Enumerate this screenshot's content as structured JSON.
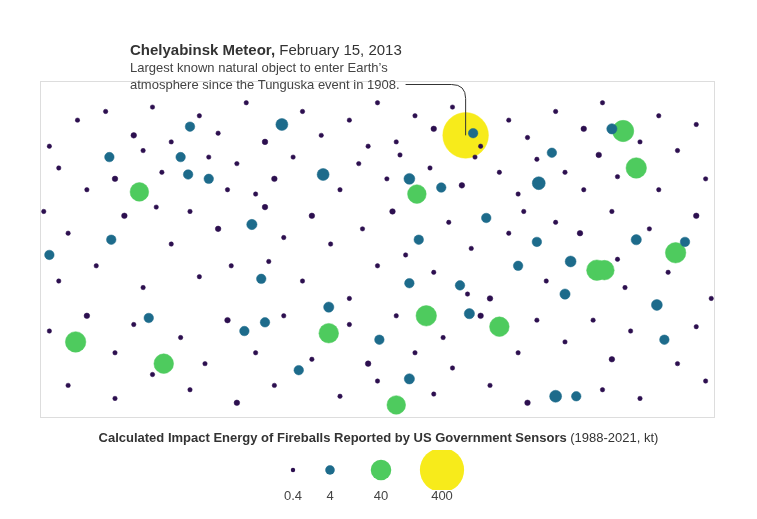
{
  "chart_data": {
    "type": "bubble",
    "title": "Calculated Impact Energy of Fireballs Reported by US Government Sensors",
    "subtitle": "(1988-2021, kt)",
    "annotation": {
      "title": "Chelyabinsk Meteor,",
      "date": "February 15, 2013",
      "text": [
        "Largest known natural object to enter Earth’s",
        "atmosphere since the Tunguska event in 1908."
      ]
    },
    "xlim": [
      -180,
      180
    ],
    "ylim": [
      -75,
      80
    ],
    "tick_labels": false,
    "grid": false,
    "size_legend": {
      "values": [
        0.4,
        4,
        40,
        400
      ],
      "colors": [
        "#2c0f4f",
        "#1d6b8b",
        "#4ecb5e",
        "#f7eb1b"
      ]
    },
    "x": [
      47,
      131,
      138,
      159,
      117,
      121,
      21,
      -127,
      -161,
      -114,
      -26,
      26,
      65,
      10,
      86,
      17,
      -29,
      -51,
      95,
      149,
      -67,
      -100,
      -101,
      -175,
      138,
      103,
      85,
      93,
      125,
      51,
      17,
      17,
      106,
      -26,
      -60,
      -62,
      44,
      49,
      34,
      100,
      -143,
      -90,
      -105,
      -142,
      -42,
      58,
      75,
      164,
      153,
      1,
      -122,
      -71,
      22,
      -160,
      -145,
      -130,
      -120,
      -110,
      -95,
      -85,
      -70,
      -60,
      -40,
      -30,
      -15,
      0,
      10,
      20,
      30,
      40,
      55,
      70,
      80,
      95,
      110,
      120,
      140,
      150,
      170,
      -175,
      -5,
      -170,
      -155,
      -140,
      -125,
      -115,
      -90,
      -80,
      -75,
      -55,
      -45,
      -20,
      -10,
      5,
      12,
      28,
      45,
      52,
      65,
      75,
      100,
      110,
      118,
      128,
      150,
      160,
      175,
      -65,
      85,
      -178,
      -165,
      -150,
      -135,
      -125,
      -110,
      -100,
      -95,
      -85,
      -78,
      -58,
      -50,
      -40,
      -35,
      -25,
      -15,
      -8,
      0,
      8,
      15,
      30,
      38,
      50,
      60,
      70,
      78,
      90,
      95,
      108,
      125,
      132,
      145,
      155,
      170,
      178,
      -170,
      -118,
      48,
      -60,
      128,
      -175,
      -155,
      -140,
      -130,
      -105,
      -92,
      -80,
      -65,
      -50,
      -35,
      -15,
      -5,
      10,
      20,
      35,
      40,
      55,
      75,
      85,
      100,
      115,
      125,
      135,
      160,
      170,
      -120,
      -165,
      -140,
      -100,
      -75,
      -55,
      -20,
      0,
      30,
      60,
      80,
      120,
      140,
      175
    ],
    "y": [
      55,
      57,
      40,
      1,
      -7,
      -7,
      28,
      29,
      -40,
      -50,
      -36,
      -28,
      -33,
      -69,
      33,
      35,
      37,
      60,
      -65,
      -23,
      14,
      59,
      37,
      0,
      7,
      -3,
      6,
      47,
      58,
      56,
      -13,
      -57,
      -65,
      -24,
      -31,
      -11,
      -14,
      -27,
      31,
      -18,
      45,
      35,
      45,
      7,
      -53,
      17,
      -5,
      6,
      -39,
      -39,
      -29,
      -35,
      7,
      62,
      66,
      55,
      68,
      52,
      64,
      56,
      70,
      52,
      66,
      55,
      62,
      70,
      52,
      64,
      58,
      68,
      50,
      62,
      54,
      66,
      58,
      70,
      52,
      64,
      60,
      50,
      50,
      40,
      30,
      35,
      48,
      38,
      45,
      30,
      42,
      35,
      45,
      30,
      42,
      35,
      46,
      40,
      32,
      45,
      38,
      28,
      38,
      30,
      46,
      36,
      30,
      48,
      35,
      28,
      44,
      20,
      10,
      -5,
      18,
      -15,
      5,
      20,
      -10,
      12,
      -5,
      -3,
      8,
      -12,
      18,
      5,
      -20,
      12,
      -5,
      20,
      0,
      -8,
      15,
      3,
      -20,
      10,
      20,
      -12,
      15,
      10,
      20,
      -15,
      12,
      -8,
      18,
      -20,
      -12,
      22,
      -18,
      22,
      -2,
      -35,
      -28,
      -45,
      -32,
      -38,
      -50,
      -30,
      -45,
      -28,
      -48,
      -32,
      -50,
      -28,
      -45,
      -38,
      -52,
      -28,
      -45,
      -30,
      -40,
      -30,
      -48,
      -35,
      -50,
      -33,
      -55,
      -60,
      -66,
      -62,
      -68,
      -60,
      -65,
      -58,
      -64,
      -60,
      -68,
      -62,
      -66,
      -58
    ],
    "energy": [
      440,
      45,
      40,
      40,
      40,
      35,
      30,
      30,
      40,
      35,
      35,
      40,
      35,
      30,
      10,
      6,
      8,
      8,
      8,
      6,
      5,
      4,
      4,
      4,
      5,
      6,
      4,
      4,
      5,
      4,
      4,
      5,
      4,
      5,
      4,
      4,
      4,
      5,
      4,
      5,
      4,
      4,
      4,
      4,
      4,
      4,
      4,
      4,
      4,
      4,
      4,
      4,
      4,
      0.4,
      0.4,
      0.8,
      0.4,
      0.4,
      0.4,
      0.4,
      0.4,
      0.8,
      0.4,
      0.4,
      0.4,
      0.4,
      0.4,
      0.4,
      0.8,
      0.4,
      0.4,
      0.4,
      0.4,
      0.4,
      0.8,
      0.4,
      0.4,
      0.4,
      0.4,
      0.4,
      0.4,
      0.4,
      0.4,
      0.8,
      0.4,
      0.4,
      0.4,
      0.4,
      0.4,
      0.8,
      0.4,
      0.4,
      0.4,
      0.4,
      0.4,
      0.4,
      0.8,
      0.4,
      0.4,
      0.4,
      0.4,
      0.4,
      0.8,
      0.4,
      0.4,
      0.4,
      0.4,
      0.4,
      0.4,
      0.4,
      0.4,
      0.4,
      0.8,
      0.4,
      0.4,
      0.4,
      0.4,
      0.8,
      0.4,
      0.4,
      0.4,
      0.4,
      0.8,
      0.4,
      0.4,
      0.4,
      0.4,
      0.8,
      0.4,
      0.4,
      0.4,
      0.4,
      0.8,
      0.4,
      0.4,
      0.4,
      0.4,
      0.8,
      0.4,
      0.4,
      0.4,
      0.4,
      0.8,
      0.4,
      0.4,
      0.4,
      0.4,
      0.8,
      0.4,
      0.4,
      0.8,
      0.4,
      0.4,
      0.4,
      0.4,
      0.8,
      0.4,
      0.4,
      0.4,
      0.4,
      0.8,
      0.4,
      0.4,
      0.4,
      0.4,
      0.8,
      0.4,
      0.4,
      0.4,
      0.4,
      0.8,
      0.4,
      0.4,
      0.4,
      0.4,
      0.4,
      0.4,
      0.4,
      0.8,
      0.4,
      0.4,
      0.4,
      0.4,
      0.4,
      0.8,
      0.4,
      0.4,
      0.4
    ]
  }
}
